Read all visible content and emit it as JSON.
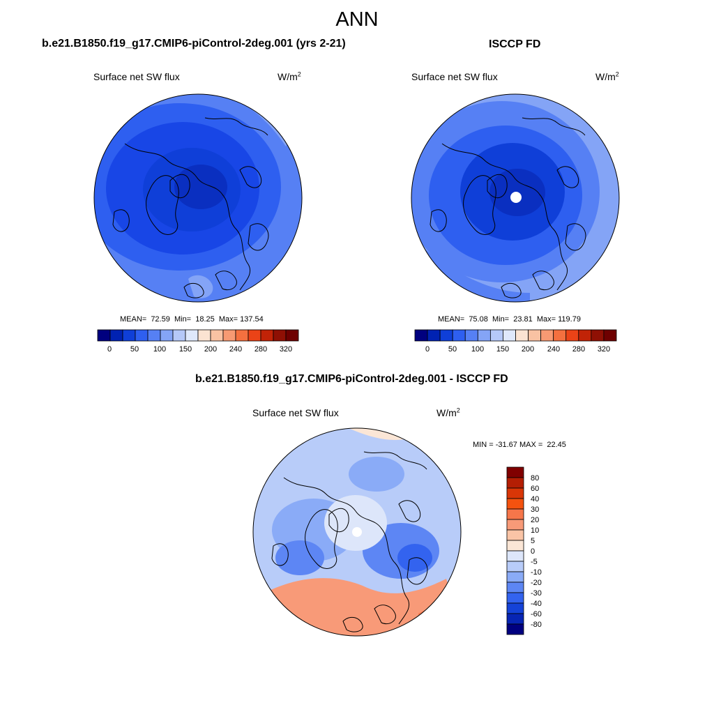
{
  "title": "ANN",
  "panels": [
    {
      "name": "model",
      "header": "b.e21.B1850.f19_g17.CMIP6-piControl-2deg.001 (yrs 2-21)",
      "variable": "Surface net SW flux",
      "units_base": "W/m",
      "units_exp": "2",
      "stats": "MEAN=  72.59  Min=  18.25  Max= 137.54"
    },
    {
      "name": "obs",
      "header": "ISCCP FD",
      "variable": "Surface net SW flux",
      "units_base": "W/m",
      "units_exp": "2",
      "stats": "MEAN=  75.08  Min=  23.81  Max= 119.79"
    },
    {
      "name": "difference",
      "header": "b.e21.B1850.f19_g17.CMIP6-piControl-2deg.001 - ISCCP FD",
      "variable": "Surface net SW flux",
      "units_base": "W/m",
      "units_exp": "2",
      "stats": "MIN = -31.67 MAX =  22.45"
    }
  ],
  "chart_data": [
    {
      "type": "heatmap",
      "title": "b.e21.B1850.f19_g17.CMIP6-piControl-2deg.001 (yrs 2-21)",
      "field": "Surface net SW flux",
      "units": "W/m2",
      "projection": "north polar stereographic",
      "mean": 72.59,
      "min": 18.25,
      "max": 137.54,
      "colorbar": {
        "orientation": "horizontal",
        "levels": [
          0,
          25,
          50,
          75,
          100,
          125,
          150,
          175,
          200,
          220,
          240,
          260,
          280,
          300,
          320
        ],
        "tick_labels": [
          "0",
          "50",
          "100",
          "150",
          "200",
          "240",
          "280",
          "320"
        ],
        "colors": [
          "#00007f",
          "#0022b2",
          "#0f3fd8",
          "#2e5ff0",
          "#5680f4",
          "#84a4f6",
          "#b5c8f8",
          "#dfe8fb",
          "#fbe3d2",
          "#f9c2a3",
          "#f79a73",
          "#f4703f",
          "#eb4317",
          "#c12307",
          "#8f1004",
          "#6e0000"
        ]
      }
    },
    {
      "type": "heatmap",
      "title": "ISCCP FD",
      "field": "Surface net SW flux",
      "units": "W/m2",
      "projection": "north polar stereographic",
      "mean": 75.08,
      "min": 23.81,
      "max": 119.79,
      "colorbar": {
        "orientation": "horizontal",
        "levels": [
          0,
          25,
          50,
          75,
          100,
          125,
          150,
          175,
          200,
          220,
          240,
          260,
          280,
          300,
          320
        ],
        "tick_labels": [
          "0",
          "50",
          "100",
          "150",
          "200",
          "240",
          "280",
          "320"
        ],
        "colors": [
          "#00007f",
          "#0022b2",
          "#0f3fd8",
          "#2e5ff0",
          "#5680f4",
          "#84a4f6",
          "#b5c8f8",
          "#dfe8fb",
          "#fbe3d2",
          "#f9c2a3",
          "#f79a73",
          "#f4703f",
          "#eb4317",
          "#c12307",
          "#8f1004",
          "#6e0000"
        ]
      }
    },
    {
      "type": "heatmap",
      "title": "b.e21.B1850.f19_g17.CMIP6-piControl-2deg.001 - ISCCP FD",
      "field": "Surface net SW flux",
      "units": "W/m2",
      "projection": "north polar stereographic",
      "min": -31.67,
      "max": 22.45,
      "colorbar": {
        "orientation": "vertical",
        "levels": [
          80,
          60,
          40,
          30,
          20,
          10,
          5,
          0,
          -5,
          -10,
          -20,
          -30,
          -40,
          -60,
          -80
        ],
        "tick_labels": [
          "80",
          "60",
          "40",
          "30",
          "20",
          "10",
          "5",
          "0",
          "-5",
          "-10",
          "-20",
          "-30",
          "-40",
          "-60",
          "-80"
        ],
        "colors": [
          "#800000",
          "#b41e04",
          "#d93607",
          "#f4520f",
          "#f6764a",
          "#f89a78",
          "#fac4a6",
          "#fbe6d6",
          "#dde6fa",
          "#b8ccf9",
          "#8aabf7",
          "#5d86f4",
          "#3363ef",
          "#1543d8",
          "#0725b4",
          "#000080"
        ]
      }
    }
  ]
}
